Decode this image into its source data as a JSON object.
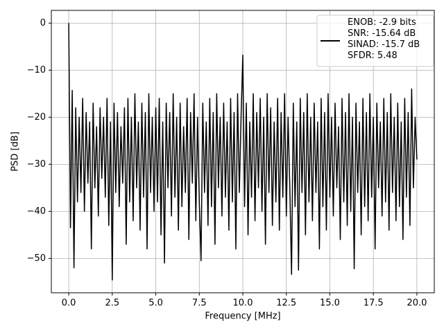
{
  "chart_data": {
    "type": "line",
    "xlabel": "Frequency [MHz]",
    "ylabel": "PSD [dB]",
    "xlim": [
      -1,
      21
    ],
    "ylim": [
      -57.3,
      2.7
    ],
    "xticks": [
      {
        "value": 0,
        "label": "0.0"
      },
      2.5,
      {
        "value": 5,
        "label": "5.0"
      },
      7.5,
      {
        "value": 10,
        "label": "10.0"
      },
      12.5,
      {
        "value": 15,
        "label": "15.0"
      },
      17.5,
      {
        "value": 20,
        "label": "20.0"
      }
    ],
    "yticks": [
      0,
      {
        "value": -10,
        "label": "−10"
      },
      {
        "value": -20,
        "label": "−20"
      },
      {
        "value": -30,
        "label": "−30"
      },
      {
        "value": -40,
        "label": "−40"
      },
      {
        "value": -50,
        "label": "−50"
      }
    ],
    "grid": true,
    "legend": "upper right",
    "x": [
      0,
      0.1,
      0.2,
      0.3,
      0.4,
      0.5,
      0.6,
      0.7,
      0.8,
      0.9,
      1,
      1.1,
      1.2,
      1.3,
      1.4,
      1.5,
      1.6,
      1.7,
      1.8,
      1.9,
      2,
      2.1,
      2.2,
      2.3,
      2.4,
      2.5,
      2.6,
      2.7,
      2.8,
      2.9,
      3,
      3.1,
      3.2,
      3.3,
      3.4,
      3.5,
      3.6,
      3.7,
      3.8,
      3.9,
      4,
      4.1,
      4.2,
      4.3,
      4.4,
      4.5,
      4.6,
      4.7,
      4.8,
      4.9,
      5,
      5.1,
      5.2,
      5.3,
      5.4,
      5.5,
      5.6,
      5.7,
      5.8,
      5.9,
      6,
      6.1,
      6.2,
      6.3,
      6.4,
      6.5,
      6.6,
      6.7,
      6.8,
      6.9,
      7,
      7.1,
      7.2,
      7.3,
      7.4,
      7.5,
      7.6,
      7.7,
      7.8,
      7.9,
      8,
      8.1,
      8.2,
      8.3,
      8.4,
      8.5,
      8.6,
      8.7,
      8.8,
      8.9,
      9,
      9.1,
      9.2,
      9.3,
      9.4,
      9.5,
      9.6,
      9.7,
      9.8,
      9.9,
      10,
      10.1,
      10.2,
      10.3,
      10.4,
      10.5,
      10.6,
      10.7,
      10.8,
      10.9,
      11,
      11.1,
      11.2,
      11.3,
      11.4,
      11.5,
      11.6,
      11.7,
      11.8,
      11.9,
      12,
      12.1,
      12.2,
      12.3,
      12.4,
      12.5,
      12.6,
      12.7,
      12.8,
      12.9,
      13,
      13.1,
      13.2,
      13.3,
      13.4,
      13.5,
      13.6,
      13.7,
      13.8,
      13.9,
      14,
      14.1,
      14.2,
      14.3,
      14.4,
      14.5,
      14.6,
      14.7,
      14.8,
      14.9,
      15,
      15.1,
      15.2,
      15.3,
      15.4,
      15.5,
      15.6,
      15.7,
      15.8,
      15.9,
      16,
      16.1,
      16.2,
      16.3,
      16.4,
      16.5,
      16.6,
      16.7,
      16.8,
      16.9,
      17,
      17.1,
      17.2,
      17.3,
      17.4,
      17.5,
      17.6,
      17.7,
      17.8,
      17.9,
      18,
      18.1,
      18.2,
      18.3,
      18.4,
      18.5,
      18.6,
      18.7,
      18.8,
      18.9,
      19,
      19.1,
      19.2,
      19.3,
      19.4,
      19.5,
      19.6,
      19.7,
      19.8,
      19.9,
      20
    ],
    "series": [
      {
        "name": "ENOB: -2.9 bits\nSNR: -15.64 dB\nSINAD: -15.7 dB\nSFDR: 5.48",
        "color": "#000000",
        "values": [
          0,
          -43.5,
          -14.3,
          -52,
          -18,
          -38,
          -20,
          -36,
          -16,
          -40,
          -19,
          -34,
          -21,
          -48,
          -17,
          -35,
          -22,
          -41,
          -18,
          -33,
          -20,
          -37,
          -16,
          -43,
          -21,
          -54.6,
          -17,
          -36,
          -19,
          -39,
          -22,
          -34,
          -18,
          -47,
          -16,
          -38,
          -20,
          -42,
          -15,
          -35,
          -21,
          -44,
          -17,
          -37,
          -19,
          -48,
          -15,
          -36,
          -20,
          -40,
          -18,
          -38,
          -16,
          -45,
          -21,
          -51,
          -17,
          -35,
          -19,
          -41,
          -15,
          -37,
          -20,
          -44,
          -17,
          -39,
          -22,
          -36,
          -16,
          -46,
          -19,
          -34,
          -15,
          -42,
          -20,
          -38,
          -50.5,
          -17,
          -36,
          -21,
          -43,
          -16,
          -39,
          -19,
          -47,
          -15,
          -35,
          -20,
          -41,
          -17,
          -37,
          -21,
          -44,
          -16,
          -38,
          -19,
          -48,
          -15,
          -36,
          -20,
          -6.8,
          -39,
          -17,
          -45,
          -21,
          -37,
          -15,
          -42,
          -19,
          -35,
          -16,
          -40,
          -20,
          -47,
          -15,
          -36,
          -18,
          -43,
          -21,
          -38,
          -16,
          -44,
          -19,
          -37,
          -15,
          -41,
          -20,
          -35,
          -53.4,
          -17,
          -39,
          -21,
          -52.5,
          -16,
          -36,
          -19,
          -45,
          -15,
          -38,
          -20,
          -42,
          -17,
          -36,
          -21,
          -48,
          -16,
          -39,
          -19,
          -44,
          -15,
          -37,
          -20,
          -41,
          -17,
          -35,
          -22,
          -46,
          -16,
          -38,
          -19,
          -43,
          -15,
          -40,
          -20,
          -52.2,
          -17,
          -36,
          -21,
          -45,
          -16,
          -39,
          -19,
          -42,
          -15,
          -37,
          -20,
          -48,
          -17,
          -35,
          -21,
          -41,
          -16,
          -38,
          -19,
          -44,
          -15,
          -36,
          -20,
          -42,
          -17,
          -39,
          -21,
          -46,
          -16,
          -37,
          -19,
          -43,
          -14,
          -35,
          -20,
          -29
        ]
      }
    ]
  }
}
